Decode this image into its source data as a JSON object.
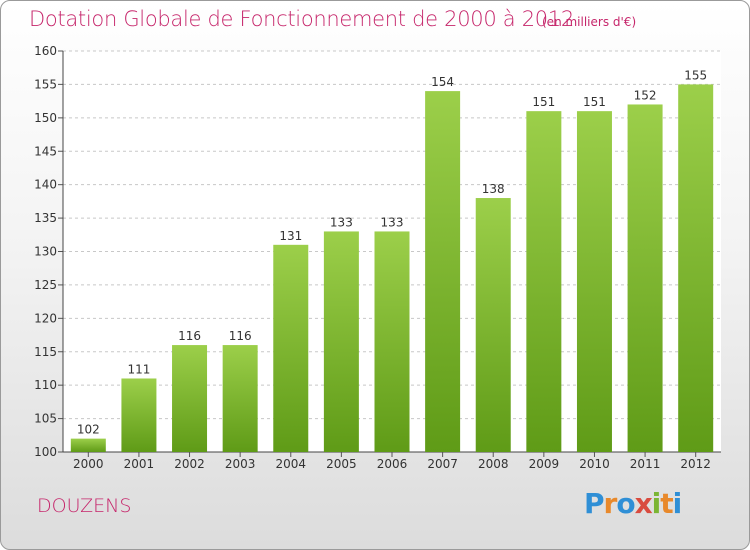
{
  "chart_data": {
    "type": "bar",
    "title": "Dotation Globale de Fonctionnement de 2000 à 2012",
    "subtitle": "(en milliers d'€)",
    "categories": [
      "2000",
      "2001",
      "2002",
      "2003",
      "2004",
      "2005",
      "2006",
      "2007",
      "2008",
      "2009",
      "2010",
      "2011",
      "2012"
    ],
    "values": [
      102,
      111,
      116,
      116,
      131,
      133,
      133,
      154,
      138,
      151,
      151,
      152,
      155
    ],
    "ylim": [
      100,
      160
    ],
    "yticks": [
      100,
      105,
      110,
      115,
      120,
      125,
      130,
      135,
      140,
      145,
      150,
      155,
      160
    ],
    "xlabel": "",
    "ylabel": "",
    "grid": true,
    "bar_color_top": "#9ccf4a",
    "bar_color_bottom": "#5f9b17"
  },
  "commune": "DOUZENS",
  "logo": {
    "letters": [
      "P",
      "r",
      "o",
      "x",
      "i",
      "t",
      "i"
    ],
    "colors": [
      "#2f8fd6",
      "#e8892b",
      "#2f8fd6",
      "#d94b3f",
      "#7bb534",
      "#e8892b",
      "#2f8fd6"
    ]
  }
}
